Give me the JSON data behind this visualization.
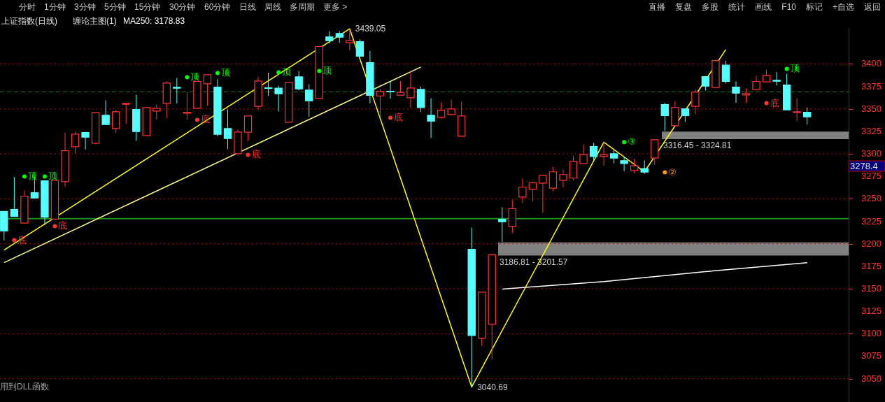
{
  "chart_data": {
    "type": "candlestick",
    "title": "上证指数(日线)",
    "subtitle": "缠论主图(1)",
    "categories": [
      null,
      null,
      null,
      null,
      null,
      null,
      null,
      null,
      null,
      null,
      null,
      null,
      null,
      null,
      null,
      null,
      null,
      null,
      null,
      null,
      null,
      null,
      null,
      null,
      null,
      null,
      null,
      null,
      null,
      null,
      null,
      null,
      null,
      null,
      null,
      null,
      null,
      null,
      null,
      null,
      null,
      null,
      null,
      null,
      null,
      null,
      null,
      null,
      null,
      null,
      null,
      null,
      null,
      null,
      null,
      null,
      null,
      null,
      null,
      null,
      null,
      null,
      null,
      null,
      null,
      null,
      null,
      null,
      null,
      null,
      null,
      null,
      null,
      null,
      null,
      null,
      null,
      null,
      null,
      null
    ],
    "ohlc": [
      [
        3236.1,
        3236.1,
        3203.7,
        3214.1
      ],
      [
        3238.2,
        3274.2,
        3230.4,
        3230.4
      ],
      [
        3222.9,
        3259.2,
        3222.4,
        3253.0
      ],
      [
        3256.8,
        3274.7,
        3250.9,
        3250.9
      ],
      [
        3270.1,
        3270.1,
        3220.5,
        3229.6
      ],
      [
        3227.5,
        3270.6,
        3227.5,
        3270.6
      ],
      [
        3269.0,
        3323.7,
        3263.3,
        3303.5
      ],
      [
        3307.9,
        3324.5,
        3300.1,
        3321.9
      ],
      [
        3323.7,
        3324.5,
        3304.8,
        3318.5
      ],
      [
        3311.8,
        3346.0,
        3310.8,
        3346.0
      ],
      [
        3342.9,
        3359.5,
        3332.5,
        3332.5
      ],
      [
        3328.1,
        3348.9,
        3323.5,
        3346.8
      ],
      [
        3355.1,
        3356.1,
        3333.3,
        3356.1
      ],
      [
        3349.4,
        3365.7,
        3314.7,
        3324.8
      ],
      [
        3320.4,
        3351.5,
        3320.4,
        3351.5
      ],
      [
        3347.6,
        3354.8,
        3338.0,
        3350.7
      ],
      [
        3356.1,
        3380.5,
        3339.8,
        3378.7
      ],
      [
        3374.0,
        3384.4,
        3355.9,
        3373.0
      ],
      [
        3345.2,
        3368.8,
        3338.0,
        3346.3
      ],
      [
        3350.7,
        3380.5,
        3350.7,
        3380.5
      ],
      [
        3377.9,
        3388.0,
        3353.5,
        3388.0
      ],
      [
        3374.3,
        3383.1,
        3319.6,
        3321.7
      ],
      [
        3328.1,
        3349.4,
        3305.3,
        3317.0
      ],
      [
        3300.1,
        3326.8,
        3300.1,
        3324.2
      ],
      [
        3324.0,
        3342.1,
        3314.6,
        3342.1
      ],
      [
        3352.8,
        3385.9,
        3348.9,
        3381.0
      ],
      [
        3373.5,
        3390.4,
        3364.4,
        3372.7
      ],
      [
        3373.0,
        3375.6,
        3347.3,
        3366.8
      ],
      [
        3335.1,
        3379.5,
        3335.1,
        3379.5
      ],
      [
        3385.7,
        3392.2,
        3370.6,
        3372.2
      ],
      [
        3370.9,
        3377.4,
        3341.1,
        3359.0
      ],
      [
        3361.6,
        3420.2,
        3361.6,
        3419.4
      ],
      [
        3430.0,
        3436.3,
        3422.8,
        3425.9
      ],
      [
        3433.9,
        3436.3,
        3423.5,
        3429.8
      ],
      [
        3423.5,
        3439.05,
        3415.0,
        3426.1
      ],
      [
        3424.8,
        3427.2,
        3408.5,
        3408.5
      ],
      [
        3401.5,
        3414.5,
        3356.1,
        3365.0
      ],
      [
        3364.4,
        3372.2,
        3340.3,
        3369.6
      ],
      [
        3369.6,
        3380.5,
        3361.3,
        3369.1
      ],
      [
        3365.2,
        3381.0,
        3365.2,
        3368.3
      ],
      [
        3362.4,
        3392.4,
        3350.9,
        3373.2
      ],
      [
        3371.7,
        3374.8,
        3346.3,
        3351.5
      ],
      [
        3342.9,
        3361.8,
        3317.8,
        3336.4
      ],
      [
        3340.6,
        3357.2,
        3339.0,
        3348.4
      ],
      [
        3343.7,
        3360.3,
        3343.7,
        3349.9
      ],
      [
        3319.6,
        3357.9,
        3319.6,
        3342.1
      ],
      [
        3193.9,
        3218.0,
        3040.69,
        3098.0
      ],
      [
        3094.8,
        3146.2,
        3086.3,
        3146.2
      ],
      [
        3110.4,
        3187.7,
        3071.5,
        3187.7
      ],
      [
        3227.3,
        3240.6,
        3202.0,
        3224.5
      ],
      [
        3219.3,
        3248.9,
        3212.0,
        3239.0
      ],
      [
        3252.0,
        3272.5,
        3245.2,
        3262.9
      ],
      [
        3260.5,
        3268.6,
        3247.0,
        3267.8
      ],
      [
        3267.5,
        3276.1,
        3234.3,
        3276.1
      ],
      [
        3261.8,
        3285.4,
        3258.7,
        3280.0
      ],
      [
        3270.6,
        3282.6,
        3262.6,
        3276.9
      ],
      [
        3273.0,
        3297.9,
        3270.4,
        3291.6
      ],
      [
        3289.3,
        3310.6,
        3289.3,
        3299.4
      ],
      [
        3308.2,
        3312.1,
        3293.2,
        3297.1
      ],
      [
        3297.1,
        3313.4,
        3286.7,
        3299.1
      ],
      [
        3300.2,
        3304.9,
        3289.3,
        3295.3
      ],
      [
        3292.4,
        3297.1,
        3280.8,
        3289.3
      ],
      [
        3281.5,
        3294.5,
        3278.2,
        3286.7
      ],
      [
        3283.6,
        3292.7,
        3277.6,
        3279.7
      ],
      [
        3295.2,
        3315.8,
        3288.0,
        3315.7
      ],
      [
        3354.8,
        3356.6,
        3325.5,
        3342.4
      ],
      [
        3331.2,
        3358.7,
        3331.2,
        3351.5
      ],
      [
        3350.2,
        3350.2,
        3335.4,
        3342.4
      ],
      [
        3352.8,
        3371.7,
        3344.2,
        3368.8
      ],
      [
        3385.9,
        3385.9,
        3370.4,
        3375.3
      ],
      [
        3373.8,
        3403.8,
        3373.8,
        3403.8
      ],
      [
        3398.7,
        3403.3,
        3378.2,
        3380.5
      ],
      [
        3374.3,
        3380.5,
        3356.6,
        3367.5
      ],
      [
        3365.5,
        3372.5,
        3356.6,
        3367.0
      ],
      [
        3371.4,
        3387.0,
        3371.4,
        3380.5
      ],
      [
        3380.0,
        3393.7,
        3380.0,
        3387.2
      ],
      [
        3381.8,
        3390.9,
        3376.1,
        3380.8
      ],
      [
        3376.6,
        3389.1,
        3348.9,
        3348.9
      ],
      [
        3346.0,
        3361.8,
        3336.4,
        3346.8
      ],
      [
        3346.3,
        3351.5,
        3332.5,
        3341.1
      ]
    ],
    "colors": [
      "#54ffff",
      "#54ffff",
      "#ff3232",
      "#54ffff",
      "#54ffff",
      "#ff3232",
      "#ff3232",
      "#ff3232",
      "#54ffff",
      "#ff3232",
      "#54ffff",
      "#ff3232",
      "#ff3232",
      "#54ffff",
      "#ff3232",
      "#ff3232",
      "#ff3232",
      "#54ffff",
      "#ff3232",
      "#ff3232",
      "#ff3232",
      "#54ffff",
      "#54ffff",
      "#ff3232",
      "#ff3232",
      "#ff3232",
      "#54ffff",
      "#54ffff",
      "#ff3232",
      "#54ffff",
      "#54ffff",
      "#ff3232",
      "#54ffff",
      "#54ffff",
      "#ff3232",
      "#54ffff",
      "#54ffff",
      "#ff3232",
      "#54ffff",
      "#ff3232",
      "#ff3232",
      "#54ffff",
      "#54ffff",
      "#ff3232",
      "#ff3232",
      "#ff3232",
      "#54ffff",
      "#ff3232",
      "#ff3232",
      "#54ffff",
      "#ff3232",
      "#ff3232",
      "#ff3232",
      "#ff3232",
      "#ff3232",
      "#ff3232",
      "#ff3232",
      "#ff3232",
      "#54ffff",
      "#ff3232",
      "#54ffff",
      "#54ffff",
      "#ff3232",
      "#54ffff",
      "#ff3232",
      "#54ffff",
      "#ff3232",
      "#54ffff",
      "#ff3232",
      "#54ffff",
      "#ff3232",
      "#54ffff",
      "#54ffff",
      "#ff3232",
      "#ff3232",
      "#ff3232",
      "#54ffff",
      "#54ffff",
      "#ff3232",
      "#54ffff"
    ],
    "series": [
      {
        "type": "line",
        "color": "#ffff00",
        "values": [
          3193,
          null,
          null,
          null,
          null,
          null,
          null,
          null,
          null,
          null,
          null,
          null,
          null,
          null,
          null,
          null,
          null,
          null,
          null,
          null,
          null,
          null,
          null,
          null,
          null,
          null,
          null,
          null,
          null,
          null,
          null,
          null,
          null,
          null,
          3439.05,
          null,
          null,
          null,
          null,
          null,
          null,
          null,
          null,
          null,
          null,
          null,
          3040.69,
          null,
          null,
          null,
          null,
          null,
          null,
          null,
          null,
          null,
          null,
          null,
          null,
          3313,
          null,
          null,
          null,
          3280,
          null,
          null,
          null,
          null,
          null,
          null,
          null,
          3416,
          null,
          null,
          null,
          null,
          null,
          null,
          null,
          null
        ],
        "value_labels": [
          null,
          null,
          null,
          null,
          null,
          null,
          null,
          null,
          null,
          null,
          null,
          null,
          null,
          null,
          null,
          null,
          null,
          null,
          null,
          null,
          null,
          null,
          null,
          null,
          null,
          null,
          null,
          null,
          null,
          null,
          null,
          null,
          null,
          null,
          "3439.05",
          null,
          null,
          null,
          null,
          null,
          null,
          null,
          null,
          null,
          null,
          null,
          "3040.69",
          null,
          null,
          null,
          null,
          null,
          null,
          null,
          null,
          null,
          null,
          null,
          null,
          null,
          null,
          null,
          null,
          null,
          null,
          null,
          null,
          null,
          null,
          null,
          null,
          null,
          null,
          null,
          null,
          null,
          null,
          null,
          null,
          null
        ]
      },
      {
        "type": "line",
        "color": "#ffff80",
        "values": [
          3179,
          null,
          null,
          null,
          null,
          null,
          null,
          null,
          null,
          null,
          null,
          null,
          null,
          null,
          null,
          null,
          null,
          null,
          null,
          null,
          null,
          null,
          null,
          null,
          null,
          null,
          null,
          null,
          null,
          null,
          null,
          null,
          null,
          null,
          null,
          null,
          null,
          null,
          null,
          null,
          null,
          3396.5,
          null,
          null,
          null,
          null,
          null,
          null,
          null,
          null,
          null,
          null,
          null,
          null,
          null,
          null,
          null,
          null,
          null,
          null,
          null,
          null,
          null,
          null,
          null,
          null,
          null,
          null,
          null,
          null,
          null,
          null,
          null,
          null,
          null,
          null,
          null,
          null,
          null,
          null
        ]
      },
      {
        "type": "line",
        "name": "MA250: 3178.83",
        "color": "#ffffff",
        "values": [
          null,
          null,
          null,
          null,
          null,
          null,
          null,
          null,
          null,
          null,
          null,
          null,
          null,
          null,
          null,
          null,
          null,
          null,
          null,
          null,
          null,
          null,
          null,
          null,
          null,
          null,
          null,
          null,
          null,
          null,
          null,
          null,
          null,
          null,
          null,
          null,
          null,
          null,
          null,
          null,
          null,
          null,
          null,
          null,
          null,
          null,
          null,
          null,
          null,
          3149.6,
          null,
          null,
          null,
          null,
          null,
          null,
          null,
          null,
          null,
          3158,
          null,
          null,
          null,
          null,
          null,
          null,
          null,
          null,
          null,
          3169,
          null,
          null,
          null,
          null,
          null,
          null,
          null,
          null,
          null,
          3179
        ]
      },
      {
        "type": "scatter",
        "marker": "circle",
        "color": "#00ff00",
        "values": [
          null,
          null,
          3274.8,
          null,
          3274.8,
          null,
          null,
          null,
          null,
          null,
          null,
          null,
          null,
          null,
          null,
          null,
          null,
          null,
          3385.2,
          null,
          null,
          3389.9,
          null,
          null,
          null,
          null,
          null,
          3390.7,
          null,
          null,
          null,
          3392.2,
          null,
          null,
          null,
          null,
          null,
          null,
          null,
          null,
          null,
          null,
          null,
          null,
          null,
          null,
          null,
          null,
          null,
          null,
          null,
          null,
          null,
          null,
          null,
          null,
          null,
          null,
          null,
          null,
          null,
          3313,
          null,
          null,
          null,
          null,
          null,
          null,
          null,
          null,
          null,
          null,
          null,
          null,
          null,
          null,
          null,
          3394.6,
          null,
          null
        ],
        "value_labels": [
          null,
          null,
          "顶",
          null,
          "顶",
          null,
          null,
          null,
          null,
          null,
          null,
          null,
          null,
          null,
          null,
          null,
          null,
          null,
          "顶",
          null,
          null,
          "顶",
          null,
          null,
          null,
          null,
          null,
          "顶",
          null,
          null,
          null,
          "顶",
          null,
          null,
          null,
          null,
          null,
          null,
          null,
          null,
          null,
          null,
          null,
          null,
          null,
          null,
          null,
          null,
          null,
          null,
          null,
          null,
          null,
          null,
          null,
          null,
          null,
          null,
          null,
          null,
          null,
          "③",
          null,
          null,
          null,
          null,
          null,
          null,
          null,
          null,
          null,
          null,
          null,
          null,
          null,
          null,
          null,
          "顶",
          null,
          null
        ]
      },
      {
        "type": "scatter",
        "marker": "circle",
        "color": "#ff3232",
        "values": [
          null,
          3204,
          null,
          null,
          null,
          3219.6,
          null,
          null,
          null,
          null,
          null,
          null,
          null,
          null,
          null,
          null,
          null,
          null,
          null,
          3337.8,
          null,
          null,
          null,
          null,
          3298.9,
          null,
          null,
          null,
          null,
          null,
          null,
          null,
          null,
          null,
          null,
          null,
          null,
          null,
          3340.1,
          null,
          null,
          null,
          null,
          null,
          null,
          null,
          null,
          null,
          null,
          null,
          null,
          null,
          null,
          null,
          null,
          null,
          null,
          null,
          null,
          null,
          null,
          null,
          null,
          null,
          null,
          null,
          null,
          null,
          null,
          null,
          null,
          null,
          null,
          null,
          null,
          3356.4,
          null,
          null,
          null,
          null
        ],
        "value_labels": [
          null,
          "底",
          null,
          null,
          null,
          "底",
          null,
          null,
          null,
          null,
          null,
          null,
          null,
          null,
          null,
          null,
          null,
          null,
          null,
          "底",
          null,
          null,
          null,
          null,
          "底",
          null,
          null,
          null,
          null,
          null,
          null,
          null,
          null,
          null,
          null,
          null,
          null,
          null,
          "底",
          null,
          null,
          null,
          null,
          null,
          null,
          null,
          null,
          null,
          null,
          null,
          null,
          null,
          null,
          null,
          null,
          null,
          null,
          null,
          null,
          null,
          null,
          null,
          null,
          null,
          null,
          null,
          null,
          null,
          null,
          null,
          null,
          null,
          null,
          null,
          null,
          "底",
          null,
          null,
          null,
          null
        ]
      },
      {
        "type": "scatter",
        "marker": "circle",
        "color": "#ff9900",
        "values": [
          null,
          null,
          null,
          null,
          null,
          null,
          null,
          null,
          null,
          null,
          null,
          null,
          null,
          null,
          null,
          null,
          null,
          null,
          null,
          null,
          null,
          null,
          null,
          null,
          null,
          null,
          null,
          null,
          null,
          null,
          null,
          null,
          null,
          null,
          null,
          null,
          null,
          null,
          null,
          null,
          null,
          null,
          null,
          null,
          null,
          null,
          null,
          null,
          null,
          null,
          null,
          null,
          null,
          null,
          null,
          null,
          null,
          null,
          null,
          null,
          null,
          null,
          null,
          null,
          null,
          3279.4,
          null,
          null,
          null,
          null,
          null,
          null,
          null,
          null,
          null,
          null,
          null,
          null,
          null,
          null
        ],
        "value_labels": [
          null,
          null,
          null,
          null,
          null,
          null,
          null,
          null,
          null,
          null,
          null,
          null,
          null,
          null,
          null,
          null,
          null,
          null,
          null,
          null,
          null,
          null,
          null,
          null,
          null,
          null,
          null,
          null,
          null,
          null,
          null,
          null,
          null,
          null,
          null,
          null,
          null,
          null,
          null,
          null,
          null,
          null,
          null,
          null,
          null,
          null,
          null,
          null,
          null,
          null,
          null,
          null,
          null,
          null,
          null,
          null,
          null,
          null,
          null,
          null,
          null,
          null,
          null,
          null,
          null,
          "②",
          null,
          null,
          null,
          null,
          null,
          null,
          null,
          null,
          null,
          null,
          null,
          null,
          null,
          null
        ]
      }
    ],
    "legend": "top left",
    "ylim": [
      3024,
      3440
    ],
    "yticks": [
      3050,
      3075,
      3100,
      3125,
      3150,
      3175,
      3200,
      3225,
      3250,
      3275,
      3300,
      3325,
      3350,
      3375,
      3400
    ],
    "tick_labels": "y",
    "bands": [
      {
        "axis": "y",
        "from": 3316.45,
        "to": 3324.81,
        "label": "3316.45 - 3324.81",
        "color": "#808080"
      },
      {
        "axis": "y",
        "from": 3186.81,
        "to": 3201.57,
        "label": "3186.81 - 3201.57",
        "color": "#808080"
      }
    ],
    "ref_lines": [
      {
        "axis": "y",
        "value": 3050,
        "color": "#c00000",
        "line_style": "dotted"
      },
      {
        "axis": "y",
        "value": 3100,
        "color": "#c00000",
        "line_style": "dotted"
      },
      {
        "axis": "y",
        "value": 3150,
        "color": "#c00000",
        "line_style": "dotted"
      },
      {
        "axis": "y",
        "value": 3200,
        "color": "#c00000",
        "line_style": "dotted"
      },
      {
        "axis": "y",
        "value": 3250,
        "color": "#c00000",
        "line_style": "dotted"
      },
      {
        "axis": "y",
        "value": 3300,
        "color": "#c00000",
        "line_style": "dotted"
      },
      {
        "axis": "y",
        "value": 3350,
        "color": "#c00000",
        "line_style": "dotted"
      },
      {
        "axis": "y",
        "value": 3400,
        "color": "#c00000",
        "line_style": "dotted"
      },
      {
        "axis": "y",
        "value": 3369,
        "color": "#1e7a1e",
        "line_style": "dashed"
      },
      {
        "axis": "y",
        "value": 3228,
        "color": "#1e8c1e",
        "line_style": "solid"
      }
    ],
    "annotations": [
      "分时",
      "1分钟",
      "3分钟",
      "5分钟",
      "15分钟",
      "30分钟",
      "60分钟",
      "日线",
      "周线",
      "多周期",
      "更多 >",
      "直播",
      "复盘",
      "多股",
      "统计",
      "画线",
      "F10",
      "标记",
      "+自选",
      "返回",
      "用到DLL函数",
      "3278.4"
    ]
  }
}
